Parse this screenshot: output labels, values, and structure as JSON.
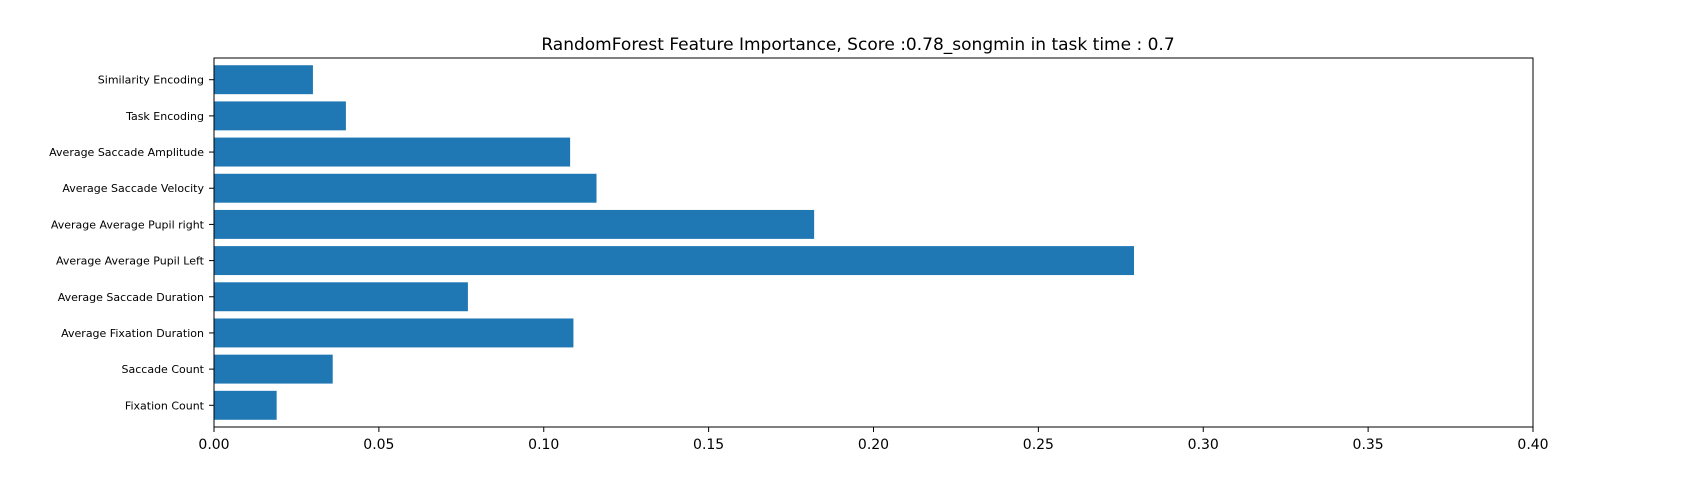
{
  "chart_data": {
    "type": "bar",
    "orientation": "horizontal",
    "title": "RandomForest Feature Importance, Score :0.78_songmin in task time : 0.7",
    "xlabel": "",
    "ylabel": "",
    "xlim": [
      0,
      0.4
    ],
    "xticks": [
      "0.00",
      "0.05",
      "0.10",
      "0.15",
      "0.20",
      "0.25",
      "0.30",
      "0.35",
      "0.40"
    ],
    "xtick_values": [
      0,
      0.05,
      0.1,
      0.15,
      0.2,
      0.25,
      0.3,
      0.35,
      0.4
    ],
    "grid": false,
    "bar_color": "#1f77b4",
    "categories": [
      "Fixation Count",
      "Saccade Count",
      "Average Fixation Duration",
      "Average Saccade Duration",
      "Average Average Pupil Left",
      "Average Average Pupil right",
      "Average Saccade Velocity",
      "Average Saccade Amplitude",
      "Task Encoding",
      "Similarity Encoding"
    ],
    "values": [
      0.019,
      0.036,
      0.109,
      0.077,
      0.279,
      0.182,
      0.116,
      0.108,
      0.04,
      0.03
    ]
  }
}
